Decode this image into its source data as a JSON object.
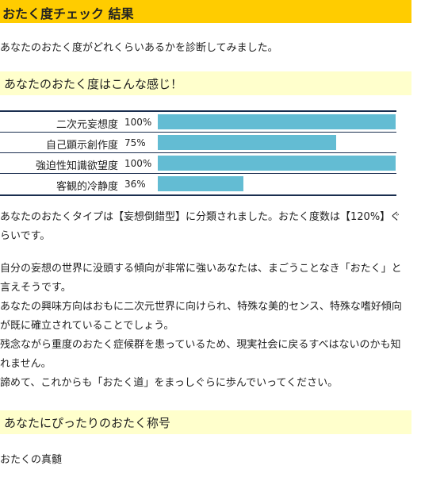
{
  "title": "おたく度チェック 結果",
  "intro": "あなたのおたく度がどれくらいあるかを診断してみました。",
  "section_profile": "あなたのおたく度はこんな感じ！",
  "scores": [
    {
      "label": "二次元妄想度",
      "value_text": "100%",
      "value": 100
    },
    {
      "label": "自己顕示創作度",
      "value_text": "75%",
      "value": 75
    },
    {
      "label": "強迫性知識欲望度",
      "value_text": "100%",
      "value": 100
    },
    {
      "label": "客観的冷静度",
      "value_text": "36%",
      "value": 36
    }
  ],
  "result_text": "あなたのおたくタイプは【妄想倒錯型】に分類されました。おたく度数は【120%】ぐらいです。",
  "description_lines": [
    "自分の妄想の世界に没頭する傾向が非常に強いあなたは、まごうことなき「おたく」と言えそうです。",
    "あなたの興味方向はおもに二次元世界に向けられ、特殊な美的センス、特殊な嗜好傾向が既に確立されていることでしょう。",
    "残念ながら重度のおたく症候群を患っているため、現実社会に戻るすべはないのかも知れません。",
    "諦めて、これからも「おたく道」をまっしぐらに歩んでいってください。"
  ],
  "section_rank": "あなたにぴったりのおたく称号",
  "rank_name": "おたくの真髄",
  "colors": {
    "title_bg": "#ffcc00",
    "section_bg": "#ffffcc",
    "bar": "#63bcd3",
    "table_border": "#1a2e4f"
  }
}
